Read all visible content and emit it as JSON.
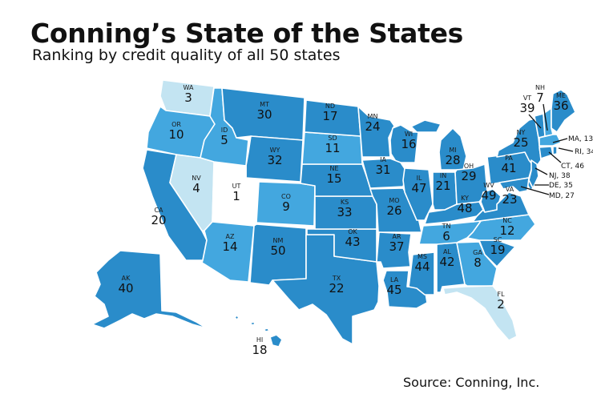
{
  "header": {
    "title": "Conning’s State of the States",
    "subtitle": "Ranking by credit quality of all 50 states"
  },
  "source": "Source: Conning, Inc.",
  "palette": {
    "rank_1": "#ffffff",
    "rank_2_4": "#c3e4f2",
    "rank_5_14": "#43a7df",
    "rank_15_50": "#2a8cca"
  },
  "states": [
    {
      "abbr": "WA",
      "rank": "3"
    },
    {
      "abbr": "OR",
      "rank": "10"
    },
    {
      "abbr": "CA",
      "rank": "20"
    },
    {
      "abbr": "NV",
      "rank": "4"
    },
    {
      "abbr": "ID",
      "rank": "5"
    },
    {
      "abbr": "MT",
      "rank": "30"
    },
    {
      "abbr": "WY",
      "rank": "32"
    },
    {
      "abbr": "UT",
      "rank": "1"
    },
    {
      "abbr": "CO",
      "rank": "9"
    },
    {
      "abbr": "AZ",
      "rank": "14"
    },
    {
      "abbr": "NM",
      "rank": "50"
    },
    {
      "abbr": "TX",
      "rank": "22"
    },
    {
      "abbr": "OK",
      "rank": "43"
    },
    {
      "abbr": "KS",
      "rank": "33"
    },
    {
      "abbr": "NE",
      "rank": "15"
    },
    {
      "abbr": "SD",
      "rank": "11"
    },
    {
      "abbr": "ND",
      "rank": "17"
    },
    {
      "abbr": "MN",
      "rank": "24"
    },
    {
      "abbr": "WI",
      "rank": "16"
    },
    {
      "abbr": "MI",
      "rank": "28"
    },
    {
      "abbr": "IA",
      "rank": "31"
    },
    {
      "abbr": "MO",
      "rank": "26"
    },
    {
      "abbr": "AR",
      "rank": "37"
    },
    {
      "abbr": "LA",
      "rank": "45"
    },
    {
      "abbr": "MS",
      "rank": "44"
    },
    {
      "abbr": "AL",
      "rank": "42"
    },
    {
      "abbr": "GA",
      "rank": "8"
    },
    {
      "abbr": "FL",
      "rank": "2"
    },
    {
      "abbr": "SC",
      "rank": "19"
    },
    {
      "abbr": "NC",
      "rank": "12"
    },
    {
      "abbr": "TN",
      "rank": "6"
    },
    {
      "abbr": "KY",
      "rank": "48"
    },
    {
      "abbr": "IL",
      "rank": "47"
    },
    {
      "abbr": "IN",
      "rank": "21"
    },
    {
      "abbr": "OH",
      "rank": "29"
    },
    {
      "abbr": "WV",
      "rank": "49"
    },
    {
      "abbr": "VA",
      "rank": "23"
    },
    {
      "abbr": "PA",
      "rank": "41"
    },
    {
      "abbr": "NY",
      "rank": "25"
    },
    {
      "abbr": "VT",
      "rank": "39"
    },
    {
      "abbr": "NH",
      "rank": "7"
    },
    {
      "abbr": "ME",
      "rank": "36"
    },
    {
      "abbr": "AK",
      "rank": "40"
    },
    {
      "abbr": "HI",
      "rank": "18"
    },
    {
      "abbr": "MA",
      "rank": "13",
      "label": "MA, 13"
    },
    {
      "abbr": "RI",
      "rank": "34",
      "label": "RI, 34"
    },
    {
      "abbr": "CT",
      "rank": "46",
      "label": "CT, 46"
    },
    {
      "abbr": "NJ",
      "rank": "38",
      "label": "NJ, 38"
    },
    {
      "abbr": "DE",
      "rank": "35",
      "label": "DE, 35"
    },
    {
      "abbr": "MD",
      "rank": "27",
      "label": "MD, 27"
    }
  ]
}
